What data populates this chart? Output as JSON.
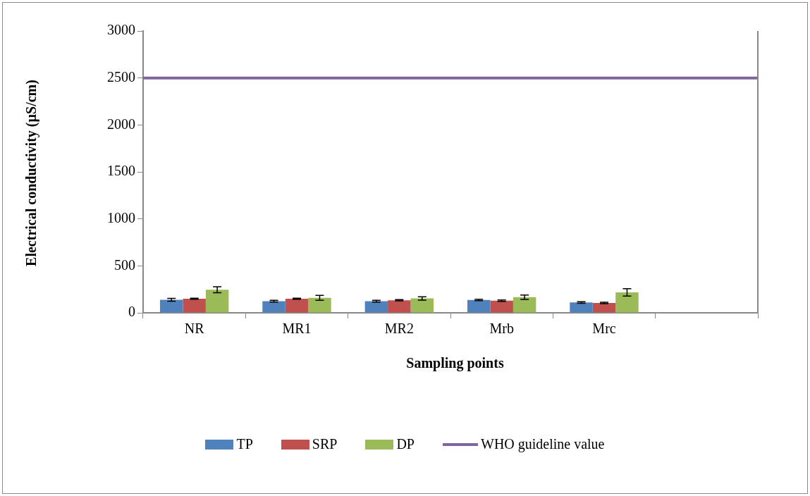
{
  "chart_data": {
    "type": "bar",
    "xlabel": "Sampling points",
    "ylabel": "Electrical conductivity (µS/cm)",
    "categories": [
      "NR",
      "MR1",
      "MR2",
      "Mrb",
      "Mrc",
      null
    ],
    "series": [
      {
        "name": "TP",
        "color": "#4f81bd",
        "values": [
          139,
          124,
          124,
          137,
          110,
          null
        ],
        "errors": [
          15,
          10,
          10,
          8,
          8,
          null
        ]
      },
      {
        "name": "SRP",
        "color": "#c0504d",
        "values": [
          150,
          150,
          134,
          129,
          105,
          null
        ],
        "errors": [
          5,
          6,
          6,
          8,
          8,
          null
        ]
      },
      {
        "name": "DP",
        "color": "#9bbb59",
        "values": [
          245,
          160,
          153,
          166,
          218,
          null
        ],
        "errors": [
          32,
          26,
          18,
          24,
          39,
          null
        ]
      }
    ],
    "ylim": [
      0,
      3000
    ],
    "yticks": [
      0,
      500,
      1000,
      1500,
      2000,
      2500,
      3000
    ],
    "grid": false,
    "legend": "bottom",
    "ref_lines": [
      {
        "axis": "y",
        "value": 2500,
        "label": "WHO guideline value",
        "color": "#8064a2"
      }
    ]
  }
}
